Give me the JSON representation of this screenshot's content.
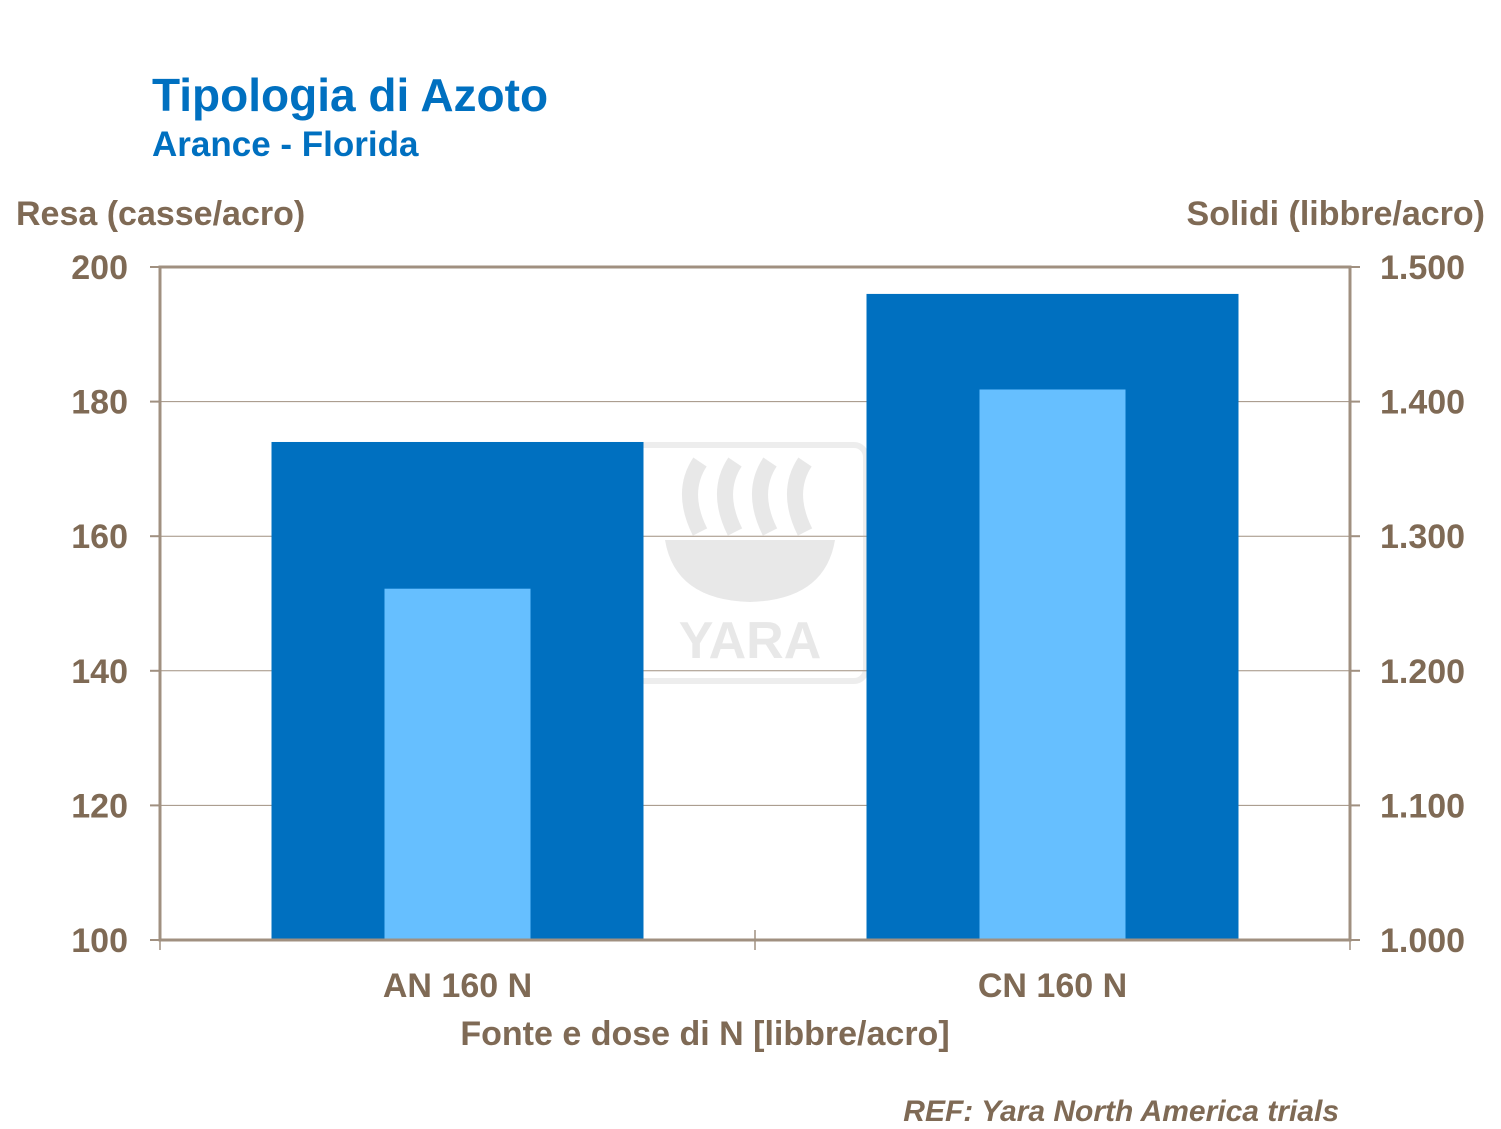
{
  "chart_data": {
    "type": "bar",
    "title": "Tipologia di Azoto",
    "subtitle": "Arance - Florida",
    "xlabel": "Fonte e dose di N [libbre/acro]",
    "ylabel": "Resa (casse/acro)",
    "y2label": "Solidi (libbre/acro)",
    "categories": [
      "AN 160 N",
      "CN 160 N"
    ],
    "ylim": [
      100,
      200
    ],
    "y2lim": [
      1.0,
      1.5
    ],
    "yticks": [
      "100",
      "120",
      "140",
      "160",
      "180",
      "200"
    ],
    "y2ticks": [
      "1.000",
      "1.100",
      "1.200",
      "1.300",
      "1.400",
      "1.500"
    ],
    "grid": true,
    "series": [
      {
        "name": "Resa",
        "axis": "left",
        "color": "#0070C0",
        "values": [
          174,
          196
        ]
      },
      {
        "name": "Solidi",
        "axis": "right",
        "color": "#66BFFF",
        "values": [
          1.261,
          1.409
        ]
      }
    ],
    "watermark": "YARA",
    "reference": "REF: Yara North America trials"
  }
}
